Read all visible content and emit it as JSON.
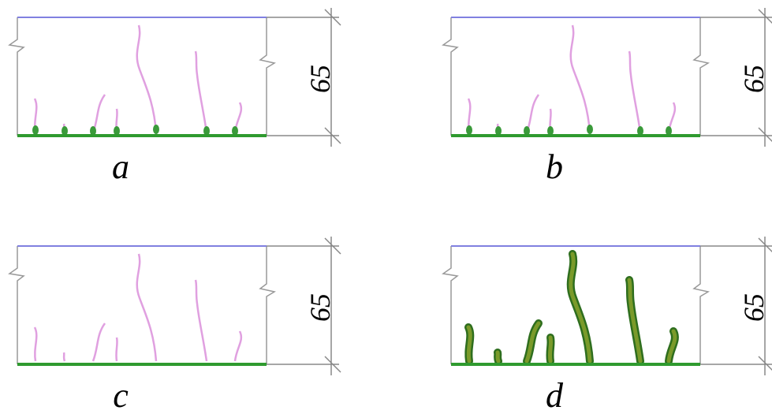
{
  "panels": [
    {
      "label": "a",
      "dimension": "65"
    },
    {
      "label": "b",
      "dimension": "65"
    },
    {
      "label": "c",
      "dimension": "65"
    },
    {
      "label": "d",
      "dimension": "65"
    }
  ]
}
